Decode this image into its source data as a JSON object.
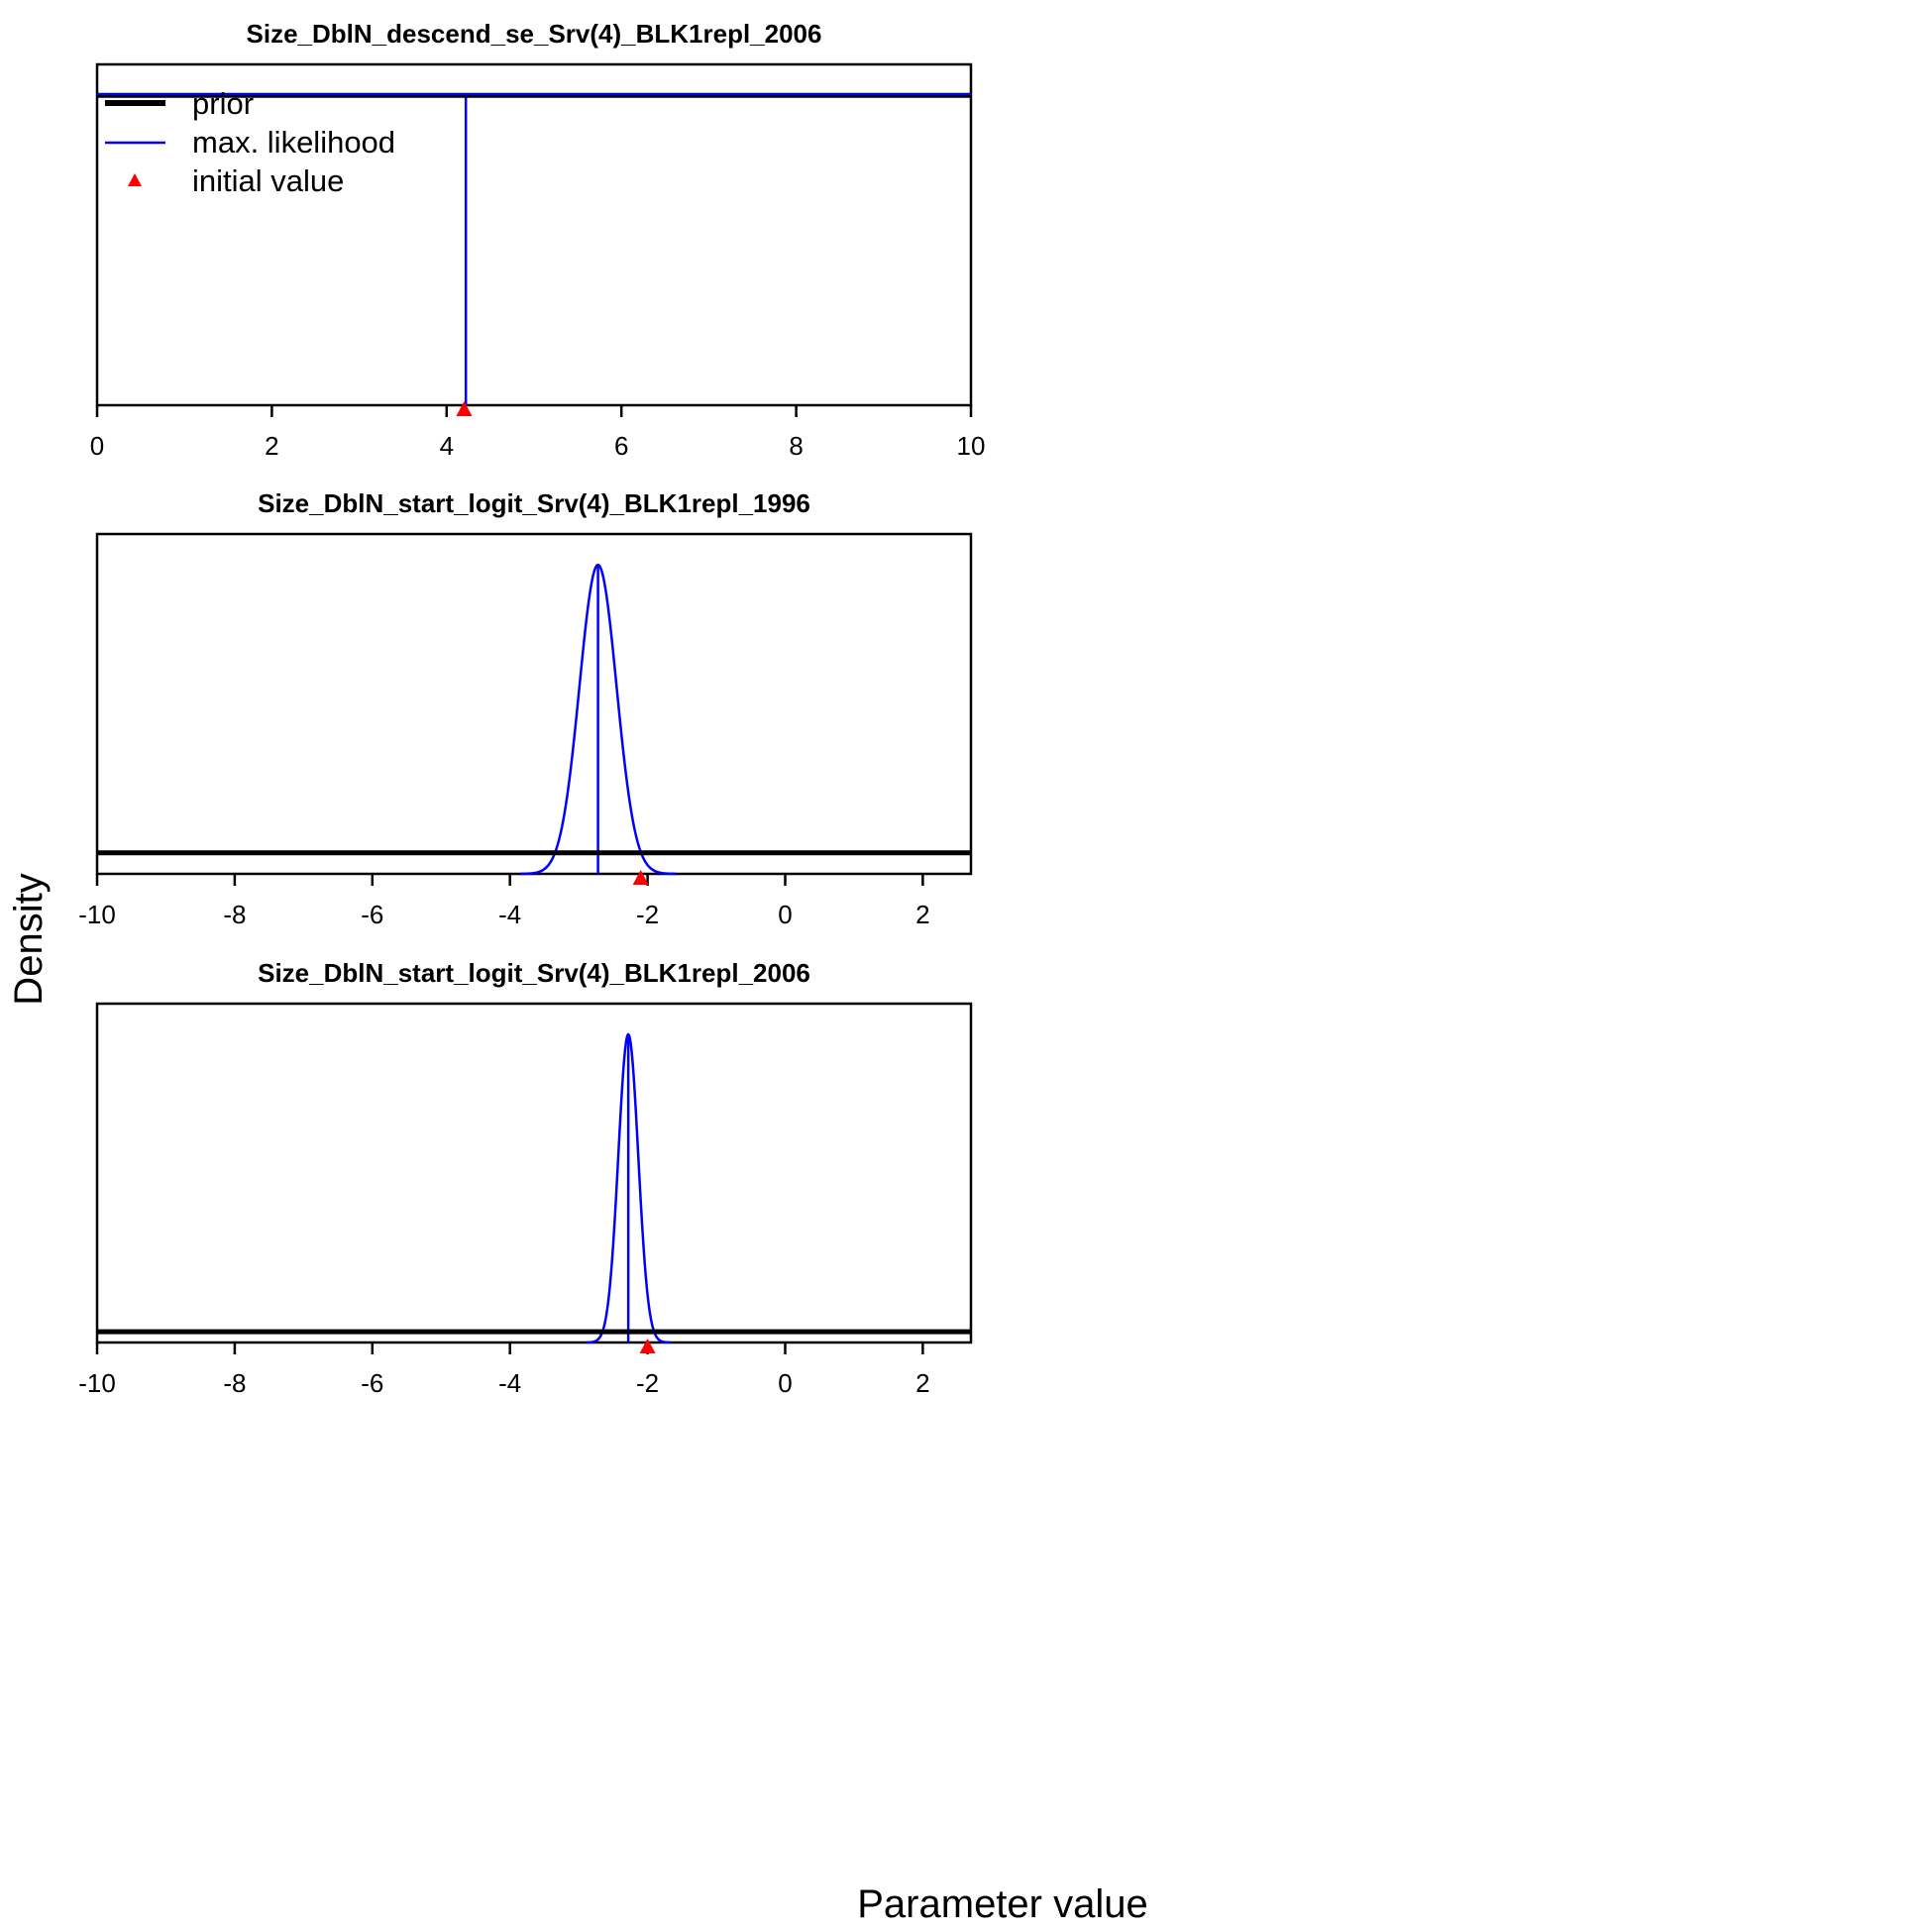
{
  "figure": {
    "xlabel": "Parameter value",
    "ylabel": "Density"
  },
  "legend": {
    "placement": "top-left",
    "items": [
      {
        "label": "prior",
        "color": "#000000",
        "kind": "thick-line"
      },
      {
        "label": "max. likelihood",
        "color": "#0000ff",
        "kind": "line"
      },
      {
        "label": "initial value",
        "color": "#ff0000",
        "kind": "triangle"
      }
    ]
  },
  "colors": {
    "prior": "#000000",
    "mle": "#0000ff",
    "initial": "#ff0000"
  },
  "chart_data": [
    {
      "type": "line",
      "title": "Size_DblN_descend_se_Srv(4)_BLK1repl_2006",
      "xlim": [
        0,
        10
      ],
      "xticks": [
        0,
        2,
        4,
        6,
        8,
        10
      ],
      "ylim": [
        0,
        1.1
      ],
      "prior_level": 1.0,
      "mle": {
        "estimate": 4.22,
        "sd": 0.0
      },
      "initial_value": 4.2,
      "mle_flat_level": 1.0
    },
    {
      "type": "line",
      "title": "Size_DblN_start_logit_Srv(4)_BLK1repl_1996",
      "xlim": [
        -10,
        2.7
      ],
      "xticks": [
        -10,
        -8,
        -6,
        -4,
        -2,
        0,
        2
      ],
      "ylim": [
        0,
        1.1
      ],
      "prior_level": 0.068,
      "mle": {
        "estimate": -2.72,
        "sd": 0.27
      },
      "initial_value": -2.1
    },
    {
      "type": "line",
      "title": "Size_DblN_start_logit_Srv(4)_BLK1repl_2006",
      "xlim": [
        -10,
        2.7
      ],
      "xticks": [
        -10,
        -8,
        -6,
        -4,
        -2,
        0,
        2
      ],
      "ylim": [
        0,
        1.1
      ],
      "prior_level": 0.035,
      "mle": {
        "estimate": -2.28,
        "sd": 0.145
      },
      "initial_value": -2.0
    }
  ]
}
